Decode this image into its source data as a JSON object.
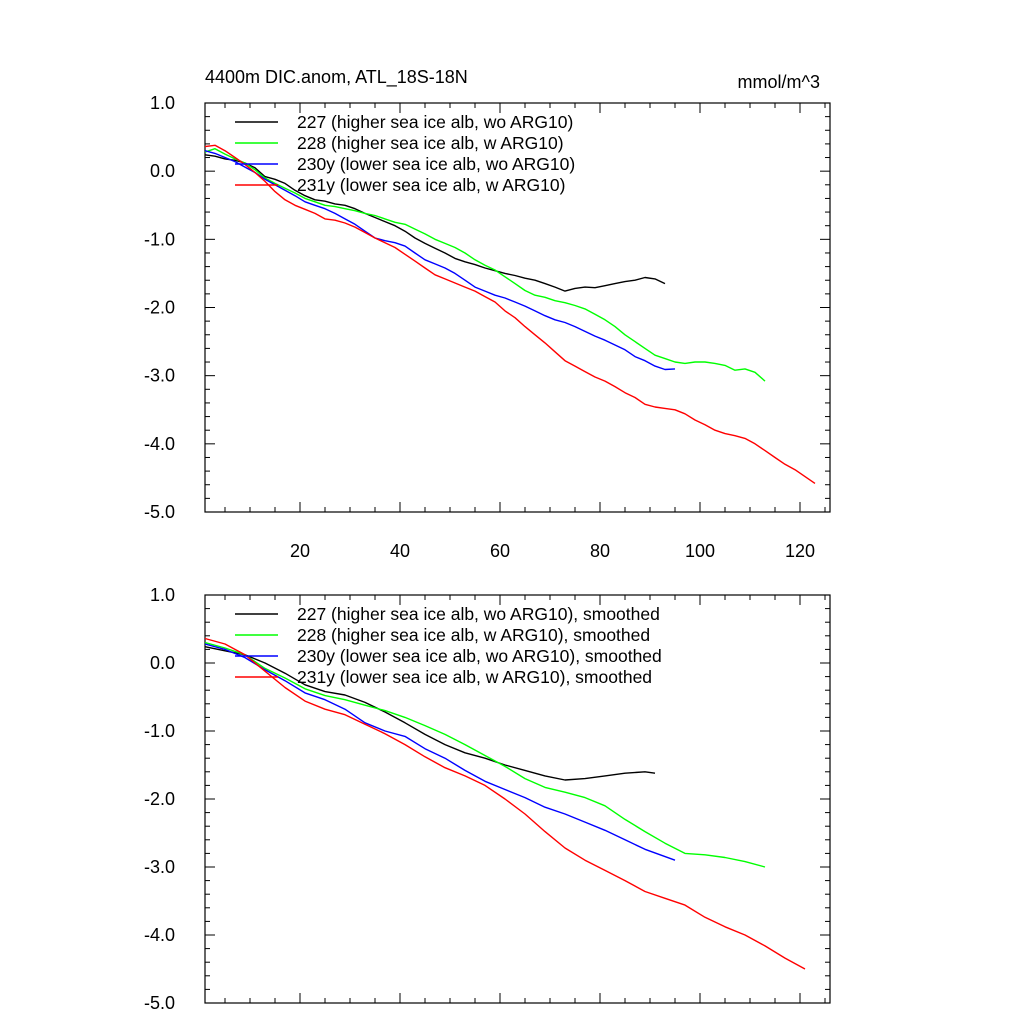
{
  "chart_data": [
    {
      "type": "line",
      "title": "4400m DIC.anom, ATL_18S-18N",
      "units": "mmol/m^3",
      "xlim": [
        1,
        126
      ],
      "ylim": [
        -5.0,
        1.0
      ],
      "x_ticks": [
        20,
        40,
        60,
        80,
        100,
        120
      ],
      "x_tick_labels": [
        "20",
        "40",
        "60",
        "80",
        "100",
        "120"
      ],
      "y_ticks": [
        1.0,
        0.0,
        -1.0,
        -2.0,
        -3.0,
        -4.0,
        -5.0
      ],
      "y_tick_labels": [
        "1.0",
        "0.0",
        "-1.0",
        "-2.0",
        "-3.0",
        "-4.0",
        "-5.0"
      ],
      "legend_position": "top-left",
      "series": [
        {
          "name": "227 (higher sea ice alb, wo ARG10)",
          "color": "#000000",
          "x": [
            1,
            3,
            5,
            7,
            9,
            11,
            13,
            15,
            17,
            19,
            21,
            23,
            25,
            27,
            29,
            31,
            33,
            35,
            37,
            39,
            41,
            43,
            45,
            47,
            49,
            51,
            53,
            55,
            57,
            59,
            61,
            63,
            65,
            67,
            69,
            71,
            73,
            75,
            77,
            79,
            81,
            83,
            85,
            87,
            89,
            91,
            93
          ],
          "y": [
            0.24,
            0.22,
            0.18,
            0.16,
            0.12,
            0.05,
            -0.08,
            -0.12,
            -0.18,
            -0.28,
            -0.36,
            -0.42,
            -0.44,
            -0.48,
            -0.5,
            -0.55,
            -0.62,
            -0.68,
            -0.74,
            -0.8,
            -0.88,
            -0.98,
            -1.06,
            -1.13,
            -1.2,
            -1.28,
            -1.33,
            -1.37,
            -1.42,
            -1.46,
            -1.5,
            -1.53,
            -1.57,
            -1.6,
            -1.65,
            -1.7,
            -1.76,
            -1.72,
            -1.7,
            -1.71,
            -1.68,
            -1.65,
            -1.62,
            -1.6,
            -1.56,
            -1.58,
            -1.65
          ]
        },
        {
          "name": "228 (higher sea ice alb, w ARG10)",
          "color": "#00ff00",
          "x": [
            1,
            3,
            5,
            7,
            9,
            11,
            13,
            15,
            17,
            19,
            21,
            23,
            25,
            27,
            29,
            31,
            33,
            35,
            37,
            39,
            41,
            43,
            45,
            47,
            49,
            51,
            53,
            55,
            57,
            59,
            61,
            63,
            65,
            67,
            69,
            71,
            73,
            75,
            77,
            79,
            81,
            83,
            85,
            87,
            89,
            91,
            93,
            95,
            97,
            99,
            101,
            103,
            105,
            107,
            109,
            111,
            113
          ],
          "y": [
            0.28,
            0.33,
            0.25,
            0.18,
            0.12,
            0.02,
            -0.1,
            -0.18,
            -0.25,
            -0.32,
            -0.4,
            -0.45,
            -0.5,
            -0.52,
            -0.55,
            -0.58,
            -0.62,
            -0.65,
            -0.7,
            -0.75,
            -0.78,
            -0.85,
            -0.92,
            -1.0,
            -1.06,
            -1.12,
            -1.2,
            -1.3,
            -1.38,
            -1.45,
            -1.55,
            -1.65,
            -1.75,
            -1.82,
            -1.85,
            -1.9,
            -1.93,
            -1.97,
            -2.02,
            -2.1,
            -2.18,
            -2.28,
            -2.4,
            -2.5,
            -2.6,
            -2.7,
            -2.75,
            -2.8,
            -2.82,
            -2.8,
            -2.8,
            -2.82,
            -2.85,
            -2.92,
            -2.9,
            -2.95,
            -3.08
          ]
        },
        {
          "name": "230y (lower sea ice alb, wo ARG10)",
          "color": "#0000ff",
          "x": [
            1,
            3,
            5,
            7,
            9,
            11,
            13,
            15,
            17,
            19,
            21,
            23,
            25,
            27,
            29,
            31,
            33,
            35,
            37,
            39,
            41,
            43,
            45,
            47,
            49,
            51,
            53,
            55,
            57,
            59,
            61,
            63,
            65,
            67,
            69,
            71,
            73,
            75,
            77,
            79,
            81,
            83,
            85,
            87,
            89,
            91,
            93,
            95
          ],
          "y": [
            0.3,
            0.26,
            0.2,
            0.14,
            0.06,
            -0.02,
            -0.12,
            -0.2,
            -0.28,
            -0.36,
            -0.45,
            -0.5,
            -0.55,
            -0.62,
            -0.7,
            -0.78,
            -0.88,
            -0.98,
            -1.02,
            -1.05,
            -1.1,
            -1.2,
            -1.3,
            -1.36,
            -1.42,
            -1.5,
            -1.6,
            -1.7,
            -1.76,
            -1.82,
            -1.86,
            -1.92,
            -1.98,
            -2.05,
            -2.12,
            -2.18,
            -2.22,
            -2.28,
            -2.35,
            -2.42,
            -2.48,
            -2.55,
            -2.62,
            -2.72,
            -2.78,
            -2.86,
            -2.91,
            -2.9
          ]
        },
        {
          "name": "231y (lower sea ice alb, w ARG10)",
          "color": "#ff0000",
          "x": [
            1,
            3,
            5,
            7,
            9,
            11,
            13,
            15,
            17,
            19,
            21,
            23,
            25,
            27,
            29,
            31,
            33,
            35,
            37,
            39,
            41,
            43,
            45,
            47,
            49,
            51,
            53,
            55,
            57,
            59,
            61,
            63,
            65,
            67,
            69,
            71,
            73,
            75,
            77,
            79,
            81,
            83,
            85,
            87,
            89,
            91,
            93,
            95,
            97,
            99,
            101,
            103,
            105,
            107,
            109,
            111,
            113,
            115,
            117,
            119,
            121,
            123
          ],
          "y": [
            0.36,
            0.38,
            0.3,
            0.2,
            0.1,
            -0.02,
            -0.15,
            -0.3,
            -0.42,
            -0.5,
            -0.56,
            -0.62,
            -0.7,
            -0.72,
            -0.76,
            -0.82,
            -0.9,
            -0.98,
            -1.05,
            -1.12,
            -1.22,
            -1.32,
            -1.42,
            -1.52,
            -1.58,
            -1.64,
            -1.7,
            -1.76,
            -1.84,
            -1.92,
            -2.05,
            -2.15,
            -2.28,
            -2.4,
            -2.52,
            -2.65,
            -2.78,
            -2.86,
            -2.94,
            -3.02,
            -3.08,
            -3.16,
            -3.25,
            -3.32,
            -3.42,
            -3.46,
            -3.48,
            -3.5,
            -3.56,
            -3.65,
            -3.72,
            -3.8,
            -3.85,
            -3.88,
            -3.92,
            -4.0,
            -4.1,
            -4.2,
            -4.3,
            -4.38,
            -4.48,
            -4.58
          ]
        }
      ]
    },
    {
      "type": "line",
      "title": "",
      "xlim": [
        1,
        126
      ],
      "ylim": [
        -5.0,
        1.0
      ],
      "x_ticks": [
        20,
        40,
        60,
        80,
        100,
        120
      ],
      "x_tick_labels": [],
      "y_ticks": [
        1.0,
        0.0,
        -1.0,
        -2.0,
        -3.0,
        -4.0,
        -5.0
      ],
      "y_tick_labels": [
        "1.0",
        "0.0",
        "-1.0",
        "-2.0",
        "-3.0",
        "-4.0",
        "-5.0"
      ],
      "legend_position": "top-left",
      "series": [
        {
          "name": "227 (higher sea ice alb, wo ARG10), smoothed",
          "color": "#000000",
          "x": [
            1,
            5,
            9,
            13,
            17,
            21,
            25,
            29,
            33,
            37,
            41,
            45,
            49,
            53,
            57,
            61,
            65,
            69,
            73,
            77,
            81,
            85,
            89,
            91
          ],
          "y": [
            0.24,
            0.18,
            0.12,
            0.0,
            -0.15,
            -0.32,
            -0.42,
            -0.47,
            -0.58,
            -0.72,
            -0.88,
            -1.05,
            -1.2,
            -1.32,
            -1.4,
            -1.5,
            -1.58,
            -1.66,
            -1.72,
            -1.7,
            -1.66,
            -1.62,
            -1.6,
            -1.62
          ]
        },
        {
          "name": "228 (higher sea ice alb, w ARG10), smoothed",
          "color": "#00ff00",
          "x": [
            1,
            5,
            9,
            13,
            17,
            21,
            25,
            29,
            33,
            37,
            41,
            45,
            49,
            53,
            57,
            61,
            65,
            69,
            73,
            77,
            81,
            85,
            89,
            93,
            97,
            101,
            105,
            109,
            113
          ],
          "y": [
            0.3,
            0.22,
            0.12,
            -0.08,
            -0.22,
            -0.38,
            -0.48,
            -0.54,
            -0.62,
            -0.7,
            -0.8,
            -0.92,
            -1.05,
            -1.2,
            -1.36,
            -1.52,
            -1.7,
            -1.83,
            -1.9,
            -1.98,
            -2.1,
            -2.3,
            -2.48,
            -2.65,
            -2.8,
            -2.82,
            -2.86,
            -2.92,
            -3.0
          ]
        },
        {
          "name": "230y (lower sea ice alb, wo ARG10), smoothed",
          "color": "#0000ff",
          "x": [
            1,
            5,
            9,
            13,
            17,
            21,
            25,
            29,
            33,
            37,
            41,
            45,
            49,
            53,
            57,
            61,
            65,
            69,
            73,
            77,
            81,
            85,
            89,
            95
          ],
          "y": [
            0.28,
            0.2,
            0.08,
            -0.1,
            -0.26,
            -0.44,
            -0.54,
            -0.68,
            -0.88,
            -1.0,
            -1.08,
            -1.26,
            -1.4,
            -1.58,
            -1.74,
            -1.86,
            -1.98,
            -2.12,
            -2.22,
            -2.34,
            -2.46,
            -2.6,
            -2.74,
            -2.9
          ]
        },
        {
          "name": "231y (lower sea ice alb, w ARG10), smoothed",
          "color": "#ff0000",
          "x": [
            1,
            5,
            9,
            13,
            17,
            21,
            25,
            29,
            33,
            37,
            41,
            45,
            49,
            53,
            57,
            61,
            65,
            69,
            73,
            77,
            81,
            85,
            89,
            93,
            97,
            101,
            105,
            109,
            113,
            117,
            121
          ],
          "y": [
            0.36,
            0.28,
            0.12,
            -0.12,
            -0.36,
            -0.56,
            -0.68,
            -0.76,
            -0.9,
            -1.04,
            -1.2,
            -1.38,
            -1.54,
            -1.66,
            -1.8,
            -2.0,
            -2.22,
            -2.48,
            -2.72,
            -2.9,
            -3.05,
            -3.2,
            -3.36,
            -3.46,
            -3.56,
            -3.74,
            -3.88,
            -4.0,
            -4.16,
            -4.34,
            -4.5
          ]
        }
      ]
    }
  ]
}
